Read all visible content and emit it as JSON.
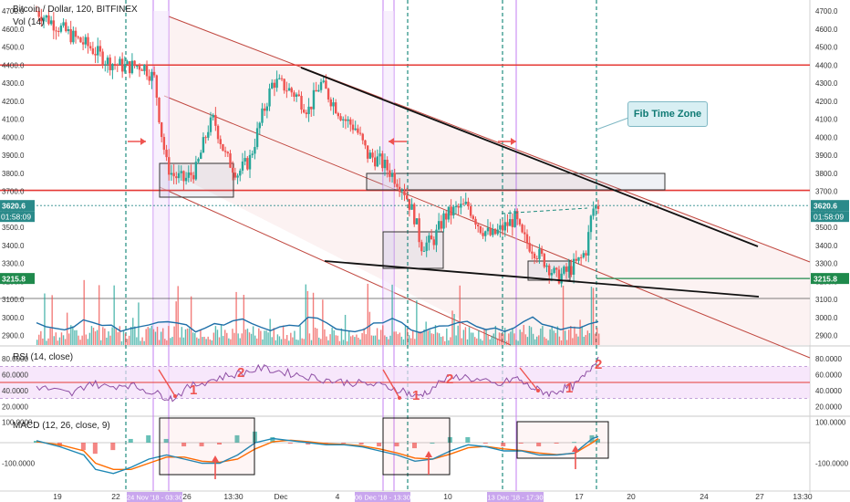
{
  "header": {
    "symbol": "Bitcoin / Dollar, 120, BITFINEX",
    "volume_label": "Vol (14)",
    "rsi_label": "RSI (14, close)",
    "macd_label": "MACD (12, 26, close, 9)"
  },
  "annotations": {
    "fib_time_zone": "Fib Time Zone",
    "rsi_marks": [
      "1",
      "2",
      "1",
      "2",
      "1",
      "2"
    ]
  },
  "colors": {
    "up": "#26a69a",
    "down": "#ef5350",
    "resistance": "#e53935",
    "trendline": "#111111",
    "fib_line": "#1e8c7e",
    "purple_line": "#c37ef0",
    "rsi_band": "#f4ddfa",
    "rsi_line": "#8e4fa4",
    "macd_line": "#1e88b5",
    "signal_line": "#ff6d00",
    "price_tag": "#2a8a8a",
    "support_tag": "#1f8a4c"
  },
  "chart_data": [
    {
      "type": "candlestick",
      "title": "Bitcoin / Dollar, 120, BITFINEX",
      "ylim": [
        2800,
        4800
      ],
      "y_ticks": [
        2900,
        3000,
        3100,
        3200,
        3300,
        3400,
        3500,
        3600,
        3700,
        3800,
        3900,
        4000,
        4100,
        4200,
        4300,
        4400,
        4500,
        4600,
        4700
      ],
      "x_ticks": [
        "19",
        "22",
        "26",
        "13:30",
        "Dec",
        "4",
        "7",
        "10",
        "13",
        "17",
        "20",
        "24",
        "27",
        "13:30"
      ],
      "x_highlight_labels": [
        "24 Nov '18 - 03:30",
        "06 Dec '18 - 13:30",
        "13 Dec '18 - 17:30"
      ],
      "last_price": "3620.6",
      "countdown": "01:58:09",
      "support_price": "3215.8",
      "horizontal_levels": [
        4400,
        3705,
        3105
      ],
      "close_path": [
        [
          0,
          4700
        ],
        [
          6,
          4630
        ],
        [
          12,
          4560
        ],
        [
          18,
          4500
        ],
        [
          24,
          4420
        ],
        [
          30,
          4390
        ],
        [
          36,
          4400
        ],
        [
          40,
          4320
        ],
        [
          42,
          4050
        ],
        [
          44,
          3850
        ],
        [
          46,
          3790
        ],
        [
          50,
          3760
        ],
        [
          54,
          3820
        ],
        [
          58,
          4050
        ],
        [
          60,
          4100
        ],
        [
          64,
          3890
        ],
        [
          68,
          3800
        ],
        [
          72,
          3870
        ],
        [
          76,
          4100
        ],
        [
          80,
          4310
        ],
        [
          84,
          4280
        ],
        [
          88,
          4230
        ],
        [
          92,
          4150
        ],
        [
          96,
          4300
        ],
        [
          100,
          4200
        ],
        [
          104,
          4100
        ],
        [
          108,
          4050
        ],
        [
          112,
          3900
        ],
        [
          116,
          3870
        ],
        [
          120,
          3800
        ],
        [
          124,
          3720
        ],
        [
          128,
          3550
        ],
        [
          130,
          3400
        ],
        [
          134,
          3420
        ],
        [
          138,
          3560
        ],
        [
          142,
          3600
        ],
        [
          146,
          3620
        ],
        [
          150,
          3500
        ],
        [
          154,
          3450
        ],
        [
          158,
          3500
        ],
        [
          162,
          3550
        ],
        [
          164,
          3450
        ],
        [
          168,
          3380
        ],
        [
          172,
          3310
        ],
        [
          176,
          3220
        ],
        [
          180,
          3260
        ],
        [
          184,
          3320
        ],
        [
          186,
          3380
        ],
        [
          188,
          3600
        ],
        [
          190,
          3620
        ]
      ],
      "resistance_box_price": [
        3710,
        3800
      ]
    },
    {
      "type": "bar",
      "title": "Vol (14)",
      "series_note": "volume bars with moving average",
      "ylim": [
        0,
        100
      ]
    },
    {
      "type": "line",
      "title": "RSI (14, close)",
      "ylim": [
        10,
        90
      ],
      "y_ticks": [
        20,
        40,
        60,
        80
      ],
      "y_tick_labels": [
        "20.0000",
        "40.0000",
        "60.0000",
        "80.0000"
      ],
      "band": [
        30,
        70
      ],
      "midline": 50,
      "series": [
        {
          "name": "RSI",
          "x": [
            0,
            6,
            12,
            18,
            24,
            30,
            36,
            42,
            46,
            52,
            58,
            64,
            70,
            76,
            82,
            88,
            94,
            100,
            106,
            112,
            118,
            124,
            128,
            132,
            138,
            144,
            150,
            156,
            162,
            166,
            170,
            174,
            178,
            182,
            186,
            190
          ],
          "values": [
            45,
            40,
            35,
            50,
            44,
            48,
            42,
            34,
            30,
            45,
            52,
            58,
            62,
            68,
            64,
            60,
            56,
            52,
            50,
            48,
            45,
            40,
            32,
            38,
            54,
            58,
            52,
            46,
            56,
            46,
            40,
            36,
            42,
            46,
            60,
            82
          ]
        }
      ]
    },
    {
      "type": "line",
      "title": "MACD (12, 26, close, 9)",
      "ylim": [
        -200,
        120
      ],
      "y_ticks": [
        100,
        -100
      ],
      "y_tick_labels": [
        "100.0000",
        "-100.0000"
      ],
      "series": [
        {
          "name": "MACD",
          "x": [
            0,
            8,
            16,
            20,
            26,
            32,
            38,
            44,
            50,
            56,
            62,
            68,
            74,
            80,
            86,
            92,
            98,
            104,
            110,
            116,
            122,
            128,
            134,
            140,
            146,
            152,
            158,
            164,
            170,
            176,
            182,
            188,
            190
          ],
          "values": [
            10,
            -20,
            -60,
            -130,
            -150,
            -120,
            -80,
            -60,
            -80,
            -100,
            -100,
            -60,
            0,
            20,
            10,
            0,
            -10,
            -10,
            -20,
            -40,
            -60,
            -90,
            -80,
            -40,
            -10,
            -20,
            -40,
            -40,
            -60,
            -60,
            -50,
            20,
            30
          ]
        },
        {
          "name": "Signal",
          "x": [
            0,
            8,
            16,
            20,
            26,
            32,
            38,
            44,
            50,
            56,
            62,
            68,
            74,
            80,
            86,
            92,
            98,
            104,
            110,
            116,
            122,
            128,
            134,
            140,
            146,
            152,
            158,
            164,
            170,
            176,
            182,
            188,
            190
          ],
          "values": [
            5,
            -10,
            -40,
            -100,
            -130,
            -130,
            -100,
            -70,
            -70,
            -90,
            -95,
            -80,
            -30,
            5,
            12,
            5,
            -5,
            -8,
            -15,
            -30,
            -50,
            -75,
            -80,
            -55,
            -25,
            -18,
            -30,
            -38,
            -50,
            -58,
            -52,
            0,
            20
          ]
        }
      ]
    }
  ]
}
